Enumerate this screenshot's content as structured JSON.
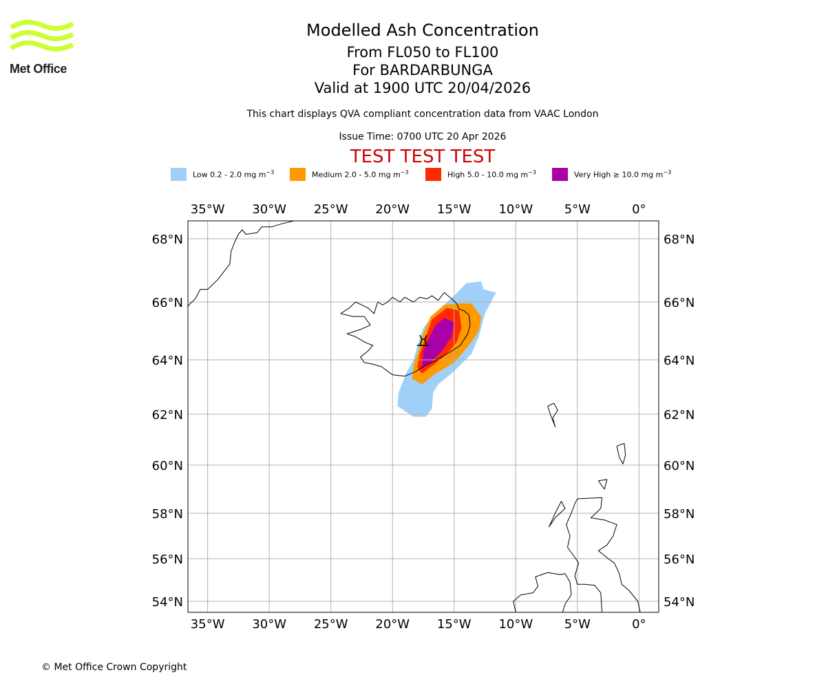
{
  "logo": {
    "text": "Met Office",
    "color": "#ccff33"
  },
  "title": "Modelled Ash Concentration",
  "levels": "From FL050 to FL100",
  "volcano_line": "For BARDARBUNGA",
  "valid_time": "Valid at 1900 UTC 20/04/2026",
  "subtitle": "This chart displays QVA compliant concentration data from VAAC London",
  "issue_time": "Issue Time: 0700 UTC 20 Apr 2026",
  "test_banner": {
    "text": "TEST TEST TEST",
    "color": "#cc0000"
  },
  "legend": [
    {
      "name": "low",
      "label": "Low 0.2 - 2.0 mg m",
      "color": "#a0d0f8"
    },
    {
      "name": "medium",
      "label": "Medium 2.0 - 5.0 mg m",
      "color": "#ff9900"
    },
    {
      "name": "high",
      "label": "High 5.0 - 10.0 mg m",
      "color": "#ff2a00"
    },
    {
      "name": "very-high",
      "label": "Very High ≥ 10.0 mg m",
      "color": "#aa00aa"
    }
  ],
  "unit_exponent": "−3",
  "copyright": "© Met Office Crown Copyright",
  "map": {
    "lon_range": [
      -36.6,
      1.6
    ],
    "lat_range": [
      53.6,
      68.6
    ],
    "lon_ticks": [
      {
        "value": -35,
        "label": "35°W"
      },
      {
        "value": -30,
        "label": "30°W"
      },
      {
        "value": -25,
        "label": "25°W"
      },
      {
        "value": -20,
        "label": "20°W"
      },
      {
        "value": -15,
        "label": "15°W"
      },
      {
        "value": -10,
        "label": "10°W"
      },
      {
        "value": -5,
        "label": "5°W"
      },
      {
        "value": 0,
        "label": "0°"
      }
    ],
    "lat_ticks": [
      {
        "value": 68,
        "label": "68°N"
      },
      {
        "value": 66,
        "label": "66°N"
      },
      {
        "value": 64,
        "label": "64°N"
      },
      {
        "value": 62,
        "label": "62°N"
      },
      {
        "value": 60,
        "label": "60°N"
      },
      {
        "value": 58,
        "label": "58°N"
      },
      {
        "value": 56,
        "label": "56°N"
      },
      {
        "value": 54,
        "label": "54°N"
      }
    ],
    "volcano": {
      "name": "Bardarbunga",
      "lon": -17.5,
      "lat": 64.64
    },
    "ash_zones": [
      {
        "level": "low",
        "color": "#a0d0f8",
        "polygon": [
          [
            -12.6,
            66.4
          ],
          [
            -11.6,
            66.3
          ],
          [
            -12.5,
            65.6
          ],
          [
            -13.0,
            64.8
          ],
          [
            -13.6,
            64.2
          ],
          [
            -15.2,
            63.5
          ],
          [
            -16.3,
            63.1
          ],
          [
            -16.7,
            62.8
          ],
          [
            -16.8,
            62.2
          ],
          [
            -17.3,
            61.9
          ],
          [
            -18.3,
            61.9
          ],
          [
            -19.6,
            62.3
          ],
          [
            -19.5,
            62.8
          ],
          [
            -18.9,
            63.5
          ],
          [
            -18.3,
            64.0
          ],
          [
            -17.9,
            64.6
          ],
          [
            -17.5,
            65.1
          ],
          [
            -16.6,
            65.6
          ],
          [
            -15.0,
            66.2
          ],
          [
            -14.0,
            66.6
          ],
          [
            -12.8,
            66.65
          ]
        ]
      },
      {
        "level": "medium",
        "color": "#ff9900",
        "polygon": [
          [
            -14.6,
            65.95
          ],
          [
            -13.6,
            65.95
          ],
          [
            -12.8,
            65.5
          ],
          [
            -13.0,
            65.0
          ],
          [
            -13.8,
            64.5
          ],
          [
            -15.0,
            63.9
          ],
          [
            -16.5,
            63.5
          ],
          [
            -17.6,
            63.1
          ],
          [
            -18.4,
            63.3
          ],
          [
            -18.3,
            63.8
          ],
          [
            -17.9,
            64.3
          ],
          [
            -17.5,
            64.9
          ],
          [
            -16.9,
            65.5
          ],
          [
            -15.8,
            65.9
          ]
        ]
      },
      {
        "level": "high",
        "color": "#ff2a00",
        "polygon": [
          [
            -15.6,
            65.8
          ],
          [
            -14.6,
            65.7
          ],
          [
            -14.4,
            65.1
          ],
          [
            -14.8,
            64.6
          ],
          [
            -15.6,
            64.2
          ],
          [
            -16.7,
            63.8
          ],
          [
            -17.6,
            63.5
          ],
          [
            -18.0,
            63.7
          ],
          [
            -17.8,
            64.2
          ],
          [
            -17.2,
            64.9
          ],
          [
            -16.8,
            65.4
          ]
        ]
      },
      {
        "level": "very-high",
        "color": "#aa00aa",
        "polygon": [
          [
            -15.8,
            65.45
          ],
          [
            -15.0,
            65.3
          ],
          [
            -15.2,
            64.8
          ],
          [
            -16.0,
            64.3
          ],
          [
            -16.8,
            63.95
          ],
          [
            -17.6,
            63.7
          ],
          [
            -17.5,
            64.3
          ],
          [
            -17.0,
            64.8
          ],
          [
            -16.5,
            65.2
          ]
        ]
      }
    ],
    "coastlines": [
      [
        [
          -36.6,
          65.85
        ],
        [
          -36.4,
          65.95
        ],
        [
          -36.0,
          66.1
        ],
        [
          -35.6,
          66.4
        ],
        [
          -35.0,
          66.4
        ],
        [
          -34.2,
          66.7
        ],
        [
          -33.7,
          66.95
        ],
        [
          -33.2,
          67.2
        ],
        [
          -33.1,
          67.6
        ],
        [
          -32.8,
          67.9
        ],
        [
          -32.5,
          68.15
        ],
        [
          -32.2,
          68.3
        ],
        [
          -31.9,
          68.15
        ],
        [
          -31.0,
          68.2
        ],
        [
          -30.6,
          68.4
        ],
        [
          -29.8,
          68.4
        ],
        [
          -29.0,
          68.5
        ],
        [
          -28.0,
          68.6
        ]
      ],
      [
        [
          -22.5,
          65.9
        ],
        [
          -22.0,
          65.8
        ],
        [
          -21.5,
          65.6
        ],
        [
          -21.2,
          66.0
        ],
        [
          -20.8,
          65.9
        ],
        [
          -20.4,
          66.0
        ],
        [
          -20.0,
          66.15
        ],
        [
          -19.4,
          66.0
        ],
        [
          -19.0,
          66.15
        ],
        [
          -18.3,
          66.0
        ],
        [
          -17.8,
          66.15
        ],
        [
          -17.2,
          66.1
        ],
        [
          -16.8,
          66.2
        ],
        [
          -16.3,
          66.05
        ],
        [
          -15.8,
          66.3
        ],
        [
          -15.2,
          66.1
        ],
        [
          -14.8,
          65.95
        ],
        [
          -14.6,
          65.75
        ],
        [
          -14.2,
          65.7
        ],
        [
          -13.8,
          65.55
        ],
        [
          -13.7,
          65.2
        ],
        [
          -13.9,
          64.9
        ],
        [
          -14.5,
          64.5
        ],
        [
          -15.4,
          64.25
        ],
        [
          -16.4,
          64.0
        ],
        [
          -17.3,
          63.8
        ],
        [
          -18.2,
          63.55
        ],
        [
          -19.0,
          63.4
        ],
        [
          -20.0,
          63.45
        ],
        [
          -20.9,
          63.75
        ],
        [
          -21.7,
          63.85
        ],
        [
          -22.3,
          63.9
        ],
        [
          -22.6,
          64.1
        ],
        [
          -22.0,
          64.3
        ],
        [
          -21.6,
          64.5
        ],
        [
          -22.2,
          64.6
        ],
        [
          -23.0,
          64.8
        ],
        [
          -23.7,
          64.9
        ],
        [
          -22.6,
          65.05
        ],
        [
          -21.8,
          65.2
        ],
        [
          -22.3,
          65.5
        ],
        [
          -23.2,
          65.5
        ],
        [
          -24.2,
          65.6
        ],
        [
          -23.5,
          65.8
        ],
        [
          -23.0,
          66.0
        ],
        [
          -22.5,
          65.9
        ]
      ],
      [
        [
          -7.4,
          62.3
        ],
        [
          -6.9,
          62.4
        ],
        [
          -6.6,
          62.15
        ],
        [
          -7.0,
          61.85
        ],
        [
          -6.8,
          61.5
        ],
        [
          -7.2,
          62.0
        ],
        [
          -7.4,
          62.3
        ]
      ],
      [
        [
          -1.8,
          60.75
        ],
        [
          -1.2,
          60.85
        ],
        [
          -1.1,
          60.4
        ],
        [
          -1.3,
          60.05
        ],
        [
          -1.6,
          60.3
        ],
        [
          -1.8,
          60.75
        ]
      ],
      [
        [
          -3.3,
          59.35
        ],
        [
          -2.6,
          59.4
        ],
        [
          -2.8,
          59.0
        ],
        [
          -3.3,
          59.35
        ]
      ],
      [
        [
          -5.0,
          58.6
        ],
        [
          -3.0,
          58.65
        ],
        [
          -3.1,
          58.2
        ],
        [
          -3.9,
          57.8
        ],
        [
          -2.8,
          57.7
        ],
        [
          -1.8,
          57.5
        ],
        [
          -2.1,
          57.0
        ],
        [
          -2.6,
          56.6
        ],
        [
          -3.3,
          56.35
        ],
        [
          -2.5,
          56.0
        ],
        [
          -2.0,
          55.8
        ],
        [
          -1.6,
          55.3
        ],
        [
          -1.4,
          54.8
        ],
        [
          -0.8,
          54.5
        ],
        [
          -0.1,
          54.0
        ],
        [
          0.1,
          53.6
        ]
      ],
      [
        [
          -3.0,
          53.6
        ],
        [
          -3.1,
          54.4
        ],
        [
          -3.6,
          54.75
        ],
        [
          -4.4,
          54.8
        ],
        [
          -5.0,
          54.8
        ],
        [
          -5.2,
          55.2
        ],
        [
          -4.9,
          55.8
        ],
        [
          -5.4,
          56.2
        ],
        [
          -5.8,
          56.5
        ],
        [
          -5.6,
          57.0
        ],
        [
          -5.9,
          57.5
        ],
        [
          -5.5,
          58.0
        ],
        [
          -5.2,
          58.4
        ],
        [
          -5.0,
          58.6
        ]
      ],
      [
        [
          -6.3,
          58.5
        ],
        [
          -6.0,
          58.2
        ],
        [
          -6.8,
          57.8
        ],
        [
          -7.3,
          57.4
        ],
        [
          -6.8,
          58.0
        ],
        [
          -6.3,
          58.5
        ]
      ],
      [
        [
          -6.0,
          55.3
        ],
        [
          -5.6,
          54.9
        ],
        [
          -5.5,
          54.3
        ],
        [
          -6.0,
          53.9
        ],
        [
          -6.2,
          53.6
        ]
      ],
      [
        [
          -10.0,
          53.6
        ],
        [
          -10.2,
          54.0
        ],
        [
          -9.6,
          54.3
        ],
        [
          -8.6,
          54.4
        ],
        [
          -8.2,
          54.7
        ],
        [
          -8.4,
          55.15
        ],
        [
          -7.4,
          55.35
        ],
        [
          -6.4,
          55.25
        ],
        [
          -6.0,
          55.3
        ]
      ]
    ]
  }
}
